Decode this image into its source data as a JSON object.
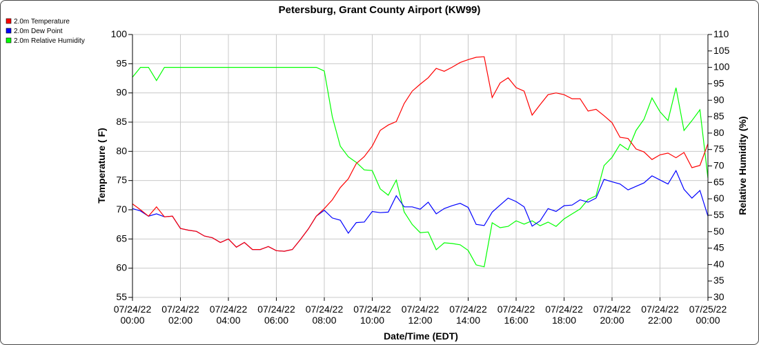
{
  "chart_data": {
    "type": "line",
    "title": "Petersburg, Grant County Airport (KW99)",
    "xlabel": "Date/Time (EDT)",
    "ylabel": "Temperature ( F)",
    "y2label": "Relative Humidity (%)",
    "ylim": [
      55,
      100
    ],
    "y2lim": [
      30,
      110
    ],
    "yticks": [
      55,
      60,
      65,
      70,
      75,
      80,
      85,
      90,
      95,
      100
    ],
    "y2ticks": [
      30,
      35,
      40,
      45,
      50,
      55,
      60,
      65,
      70,
      75,
      80,
      85,
      90,
      95,
      100,
      105,
      110
    ],
    "xtick_labels": [
      [
        "07/24/22",
        "00:00"
      ],
      [
        "07/24/22",
        "02:00"
      ],
      [
        "07/24/22",
        "04:00"
      ],
      [
        "07/24/22",
        "06:00"
      ],
      [
        "07/24/22",
        "08:00"
      ],
      [
        "07/24/22",
        "10:00"
      ],
      [
        "07/24/22",
        "12:00"
      ],
      [
        "07/24/22",
        "14:00"
      ],
      [
        "07/24/22",
        "16:00"
      ],
      [
        "07/24/22",
        "18:00"
      ],
      [
        "07/24/22",
        "20:00"
      ],
      [
        "07/24/22",
        "22:00"
      ],
      [
        "07/25/22",
        "00:00"
      ]
    ],
    "x_hours_range": [
      0,
      24
    ],
    "x_interval_minutes": 20,
    "grid": true,
    "legend_position": "top-left outside",
    "series": [
      {
        "name": "2.0m Temperature",
        "axis": "left",
        "color": "#ff0000",
        "values": [
          71.0,
          70.0,
          68.9,
          70.5,
          68.8,
          68.9,
          66.8,
          66.5,
          66.3,
          65.5,
          65.2,
          64.4,
          65.0,
          63.6,
          64.4,
          63.2,
          63.2,
          63.7,
          63.0,
          62.9,
          63.2,
          64.9,
          66.7,
          68.9,
          70.2,
          71.7,
          73.8,
          75.3,
          77.9,
          79.1,
          80.9,
          83.6,
          84.5,
          85.1,
          88.2,
          90.3,
          91.5,
          92.6,
          94.2,
          93.7,
          94.4,
          95.2,
          95.7,
          96.1,
          96.2,
          89.2,
          91.7,
          92.6,
          90.9,
          90.3,
          86.2,
          88.0,
          89.7,
          90.0,
          89.7,
          89.0,
          89.0,
          86.9,
          87.2,
          86.1,
          84.9,
          82.4,
          82.2,
          80.4,
          79.9,
          78.6,
          79.4,
          79.7,
          78.9,
          79.8,
          77.2,
          77.6,
          81.3
        ]
      },
      {
        "name": "2.0m Dew Point",
        "axis": "left",
        "color": "#0000ff",
        "values": [
          70.2,
          69.8,
          68.9,
          69.3,
          68.8,
          68.9,
          66.8,
          66.5,
          66.3,
          65.5,
          65.2,
          64.4,
          65.0,
          63.6,
          64.4,
          63.2,
          63.2,
          63.7,
          63.0,
          62.9,
          63.2,
          64.9,
          66.7,
          68.9,
          69.9,
          68.6,
          68.2,
          66.0,
          67.8,
          67.9,
          69.7,
          69.5,
          69.6,
          72.4,
          70.5,
          70.5,
          70.1,
          71.3,
          69.3,
          70.2,
          70.7,
          71.1,
          70.4,
          67.5,
          67.3,
          69.6,
          70.8,
          72.0,
          71.4,
          70.5,
          67.2,
          68.1,
          70.2,
          69.7,
          70.7,
          70.8,
          71.7,
          71.3,
          72.0,
          75.2,
          74.8,
          74.4,
          73.4,
          74.0,
          74.6,
          75.8,
          75.1,
          74.4,
          76.7,
          73.5,
          72.0,
          73.3,
          68.9
        ]
      },
      {
        "name": "2.0m Relative Humidity",
        "axis": "right",
        "color": "#00ff00",
        "values": [
          97,
          100,
          100,
          96,
          100,
          100,
          100,
          100,
          100,
          100,
          100,
          100,
          100,
          100,
          100,
          100,
          100,
          100,
          100,
          100,
          100,
          100,
          100,
          100,
          98.9,
          85,
          76,
          72.8,
          71.1,
          68.8,
          68.6,
          63.0,
          61.1,
          65.7,
          56.0,
          52.2,
          49.7,
          49.9,
          44.5,
          46.6,
          46.4,
          46.0,
          44.3,
          39.9,
          39.3,
          52.7,
          51.2,
          51.6,
          53.3,
          52.3,
          53.3,
          51.8,
          52.9,
          51.6,
          53.9,
          55.4,
          56.9,
          59.8,
          60.9,
          70.1,
          72.6,
          76.6,
          74.9,
          80.8,
          84.2,
          90.7,
          86.5,
          83.8,
          93.8,
          80.8,
          83.8,
          87.1,
          66.3
        ]
      }
    ]
  }
}
